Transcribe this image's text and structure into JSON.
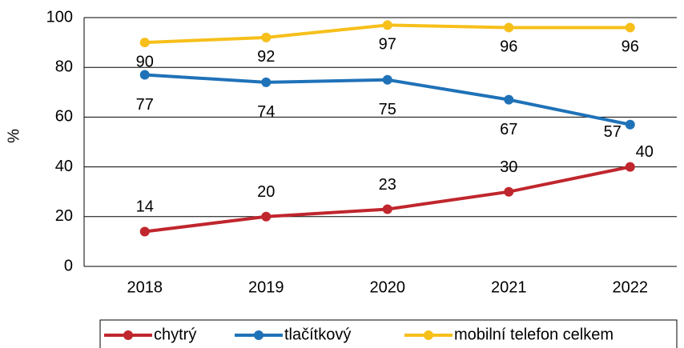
{
  "chart_data": {
    "type": "line",
    "y_label": "%",
    "categories": [
      "2018",
      "2019",
      "2020",
      "2021",
      "2022"
    ],
    "series": [
      {
        "name": "chytrý",
        "color": "#c0262d",
        "values": [
          14,
          20,
          23,
          30,
          40
        ]
      },
      {
        "name": "tlačítkový",
        "color": "#1f72b8",
        "values": [
          77,
          74,
          75,
          67,
          57
        ]
      },
      {
        "name": "mobilní telefon celkem",
        "color": "#f6bf1a",
        "values": [
          90,
          92,
          97,
          96,
          96
        ]
      }
    ],
    "ylim": [
      0,
      100
    ],
    "yticks": [
      0,
      20,
      40,
      60,
      80,
      100
    ],
    "grid": true,
    "legend": "bottom"
  }
}
